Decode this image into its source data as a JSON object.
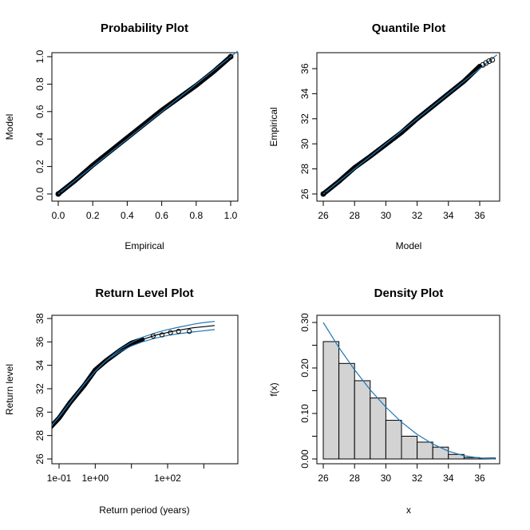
{
  "chart_data": [
    {
      "type": "scatter",
      "title": "Probability Plot",
      "xlabel": "Empirical",
      "ylabel": "Model",
      "xlim": [
        0,
        1
      ],
      "ylim": [
        0,
        1
      ],
      "xticks": [
        "0.0",
        "0.2",
        "0.4",
        "0.6",
        "0.8",
        "1.0"
      ],
      "yticks": [
        "0.0",
        "0.2",
        "0.4",
        "0.6",
        "0.8",
        "1.0"
      ],
      "points": [
        [
          0.0,
          0.0
        ],
        [
          0.1,
          0.1
        ],
        [
          0.2,
          0.21
        ],
        [
          0.3,
          0.31
        ],
        [
          0.4,
          0.41
        ],
        [
          0.5,
          0.51
        ],
        [
          0.6,
          0.61
        ],
        [
          0.7,
          0.7
        ],
        [
          0.8,
          0.79
        ],
        [
          0.9,
          0.89
        ],
        [
          1.0,
          1.0
        ]
      ],
      "reference_line": "y = x",
      "colors": {
        "points": "#000000",
        "line": "#1f77b4"
      },
      "grid": false
    },
    {
      "type": "scatter",
      "title": "Quantile Plot",
      "xlabel": "Model",
      "ylabel": "Empirical",
      "xlim": [
        26,
        37
      ],
      "ylim": [
        26,
        37
      ],
      "xticks": [
        "26",
        "28",
        "30",
        "32",
        "34",
        "36"
      ],
      "yticks": [
        "26",
        "28",
        "30",
        "32",
        "34",
        "36"
      ],
      "points": [
        [
          26.0,
          26.0
        ],
        [
          27.0,
          27.0
        ],
        [
          28.0,
          28.1
        ],
        [
          29.0,
          29.0
        ],
        [
          30.0,
          29.95
        ],
        [
          31.0,
          30.9
        ],
        [
          32.0,
          32.0
        ],
        [
          33.0,
          33.0
        ],
        [
          34.0,
          34.0
        ],
        [
          35.0,
          35.0
        ],
        [
          36.0,
          36.2
        ],
        [
          36.8,
          36.7
        ]
      ],
      "reference_line": "y = x",
      "colors": {
        "points": "#000000",
        "line": "#1f77b4"
      },
      "grid": false
    },
    {
      "type": "line",
      "title": "Return Level Plot",
      "xlabel": "Return period (years)",
      "ylabel": "Return level",
      "log_x": true,
      "xlim": [
        0.05,
        3000
      ],
      "ylim": [
        26,
        38
      ],
      "xticks": [
        "1e-01",
        "1e+00",
        "1e+02"
      ],
      "yticks": [
        "26",
        "28",
        "30",
        "32",
        "34",
        "36",
        "38"
      ],
      "x": [
        0.05,
        0.1,
        0.2,
        0.5,
        1,
        2,
        5,
        10,
        20,
        50,
        100,
        200,
        500,
        1000,
        2000
      ],
      "series": [
        {
          "values": [
            28.5,
            29.6,
            30.8,
            32.4,
            33.5,
            34.4,
            35.3,
            35.8,
            36.2,
            36.6,
            36.8,
            37.0,
            37.2,
            37.3,
            37.4
          ]
        },
        {
          "values": [
            28.5,
            29.6,
            30.8,
            32.4,
            33.5,
            34.4,
            35.4,
            35.95,
            36.4,
            36.8,
            37.05,
            37.25,
            37.5,
            37.65,
            37.75
          ]
        },
        {
          "values": [
            28.5,
            29.6,
            30.8,
            32.4,
            33.5,
            34.4,
            35.2,
            35.65,
            36.0,
            36.35,
            36.55,
            36.7,
            36.85,
            36.95,
            37.05
          ]
        }
      ],
      "points": [
        [
          0.05,
          28.5
        ],
        [
          0.1,
          29.5
        ],
        [
          0.2,
          30.8
        ],
        [
          0.5,
          32.3
        ],
        [
          1,
          33.6
        ],
        [
          2,
          34.4
        ],
        [
          5,
          35.3
        ],
        [
          10,
          35.9
        ],
        [
          20,
          36.2
        ],
        [
          40,
          36.5
        ],
        [
          70,
          36.6
        ],
        [
          120,
          36.8
        ],
        [
          200,
          36.9
        ],
        [
          400,
          36.9
        ]
      ],
      "colors": {
        "central": "#000000",
        "bounds": "#1f77b4",
        "points": "#000000"
      },
      "grid": false
    },
    {
      "type": "bar",
      "title": "Density Plot",
      "xlabel": "x",
      "ylabel": "f(x)",
      "xlim": [
        26,
        37
      ],
      "ylim": [
        0,
        0.3
      ],
      "xticks": [
        "26",
        "28",
        "30",
        "32",
        "34",
        "36"
      ],
      "yticks": [
        "0.00",
        "0.10",
        "0.20",
        "0.30"
      ],
      "bins": [
        [
          26,
          27
        ],
        [
          27,
          28
        ],
        [
          28,
          29
        ],
        [
          29,
          30
        ],
        [
          30,
          31
        ],
        [
          31,
          32
        ],
        [
          32,
          33
        ],
        [
          33,
          34
        ],
        [
          34,
          35
        ],
        [
          35,
          36
        ],
        [
          36,
          37
        ]
      ],
      "values": [
        0.258,
        0.21,
        0.172,
        0.134,
        0.085,
        0.05,
        0.037,
        0.026,
        0.01,
        0.003,
        0.002
      ],
      "density_curve": {
        "x": [
          26,
          27,
          28,
          29,
          30,
          31,
          32,
          33,
          34,
          35,
          36,
          37
        ],
        "y": [
          0.3,
          0.245,
          0.196,
          0.152,
          0.114,
          0.081,
          0.054,
          0.033,
          0.017,
          0.007,
          0.002,
          0.0
        ]
      },
      "colors": {
        "bars": "#d3d3d3",
        "bar_edge": "#000000",
        "curve": "#1f77b4"
      },
      "grid": false
    }
  ]
}
